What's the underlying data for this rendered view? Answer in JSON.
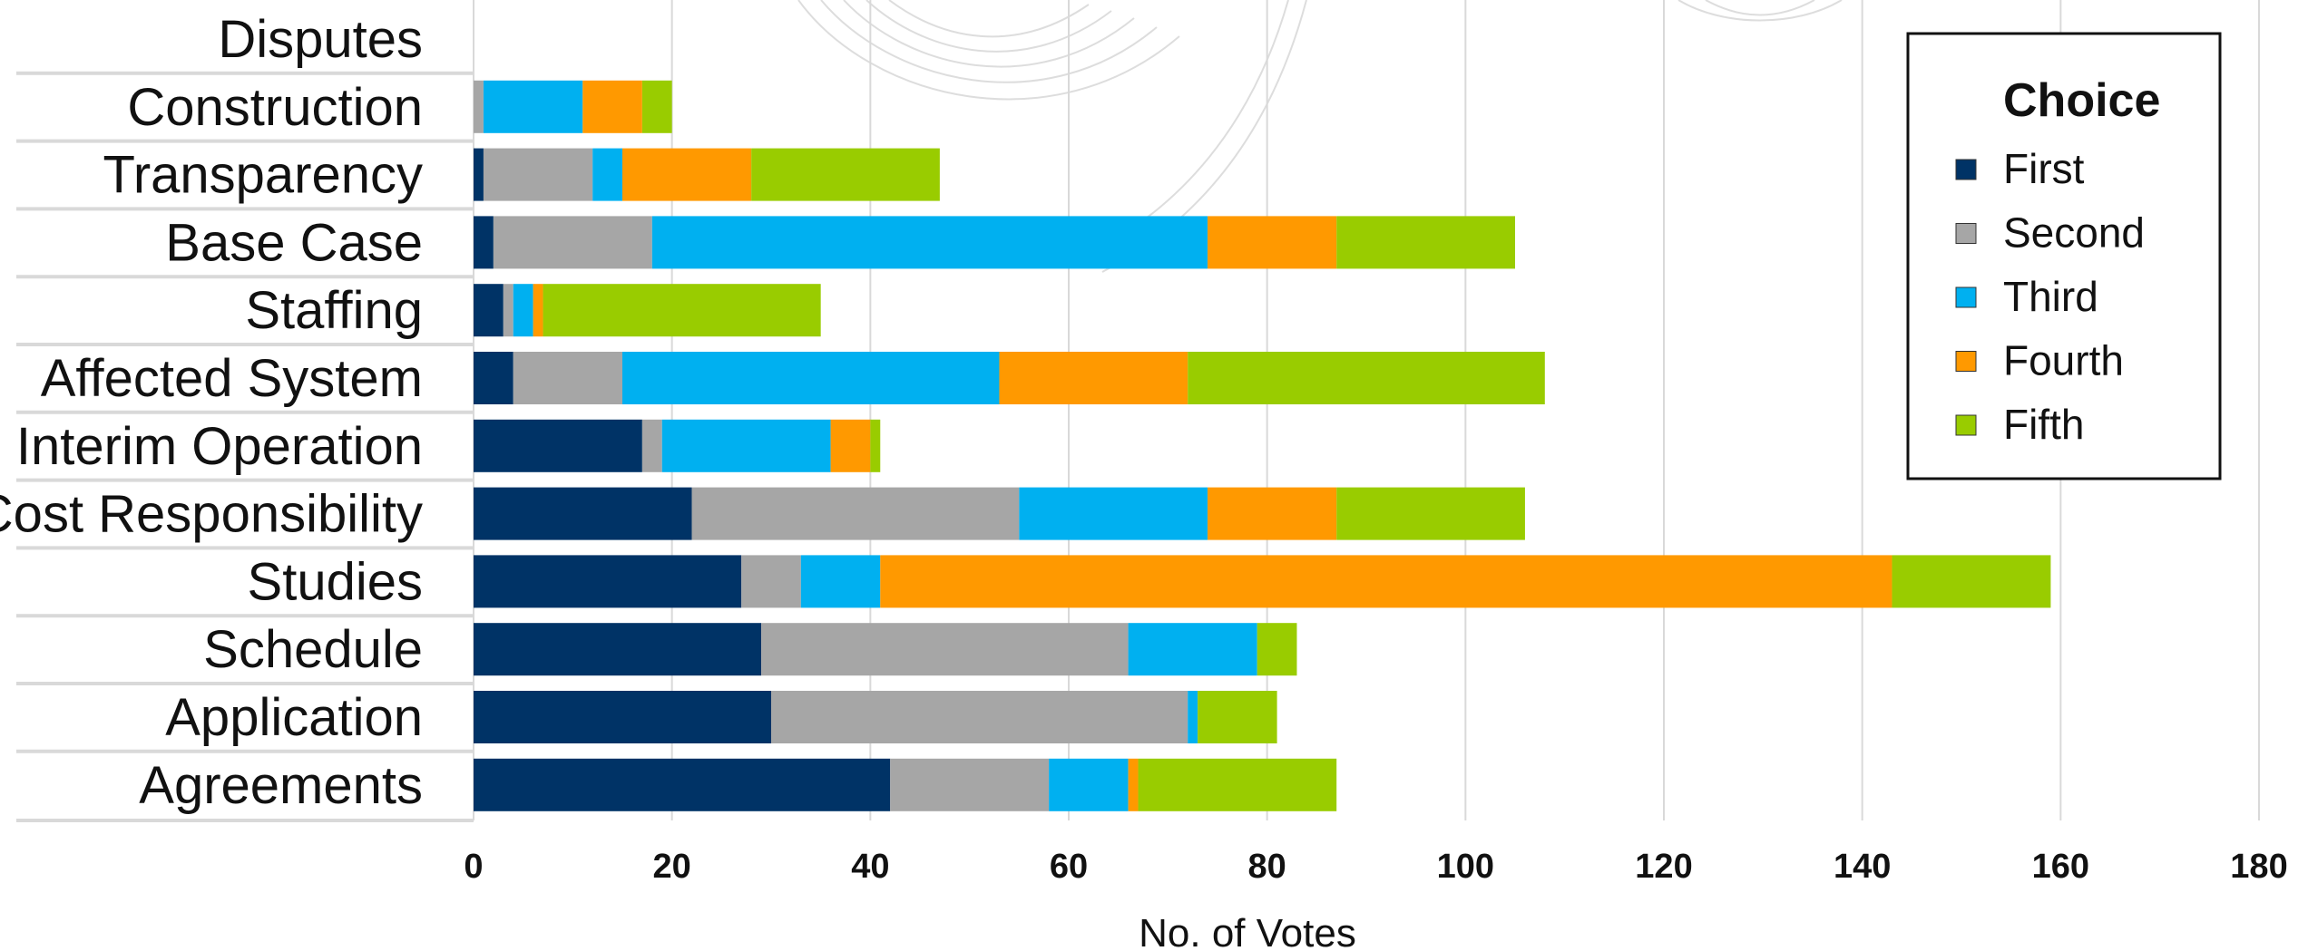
{
  "chart_data": {
    "type": "bar",
    "orientation": "horizontal",
    "stacked": true,
    "categories": [
      "Disputes",
      "Construction",
      "Transparency",
      "Base Case",
      "Staffing",
      "Affected System",
      "Interim Operation",
      "Cost Responsibility",
      "Studies",
      "Schedule",
      "Application",
      "Agreements"
    ],
    "series": [
      {
        "name": "First",
        "color": "#003366",
        "values": [
          0,
          0,
          1,
          2,
          3,
          4,
          17,
          22,
          27,
          29,
          30,
          42
        ]
      },
      {
        "name": "Second",
        "color": "#A6A6A6",
        "values": [
          0,
          1,
          11,
          16,
          1,
          11,
          2,
          33,
          6,
          37,
          42,
          16
        ]
      },
      {
        "name": "Third",
        "color": "#00B0F0",
        "values": [
          0,
          10,
          3,
          56,
          2,
          38,
          17,
          19,
          8,
          13,
          1,
          8
        ]
      },
      {
        "name": "Fourth",
        "color": "#FF9900",
        "values": [
          0,
          6,
          13,
          13,
          1,
          19,
          4,
          13,
          102,
          0,
          0,
          1
        ]
      },
      {
        "name": "Fifth",
        "color": "#99CC00",
        "values": [
          0,
          3,
          19,
          18,
          28,
          36,
          1,
          19,
          16,
          4,
          8,
          20
        ]
      }
    ],
    "xlabel": "No. of Votes",
    "ylabel": "",
    "xlim": [
      0,
      180
    ],
    "xticks": [
      "0",
      "20",
      "40",
      "60",
      "80",
      "100",
      "120",
      "140",
      "160",
      "180"
    ],
    "grid": true,
    "legend": {
      "title": "Choice",
      "position": "top-right"
    }
  }
}
